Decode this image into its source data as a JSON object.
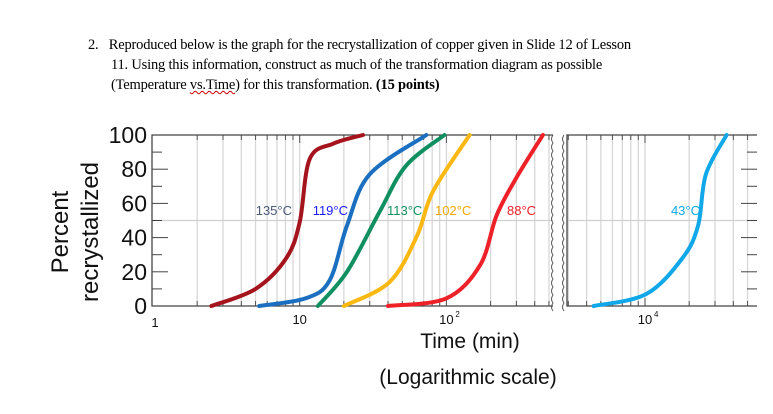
{
  "question": {
    "number": "2.",
    "line1": "Reproduced below is the graph for the recrystallization of copper given in Slide 12 of Lesson",
    "line2": "11. Using this information, construct as much of the transformation diagram as possible",
    "line3_pre": "(Temperature ",
    "line3_vs": "vs.Time",
    "line3_post": ") for this transformation. ",
    "points": "(15 points)"
  },
  "chart_data": {
    "type": "line",
    "title": "",
    "ylabel_line1": "Percent",
    "ylabel_line2": "recrystallized",
    "xlabel": "Time (min)",
    "xlabel_note": "(Logarithmic scale)",
    "x_scale": "log",
    "x_broken_axis": true,
    "xlim_left_panel": [
      1,
      590
    ],
    "xlim_right_panel": [
      2950,
      57000
    ],
    "ylim": [
      0,
      100
    ],
    "yticks": [
      "0",
      "20",
      "40",
      "60",
      "80",
      "100"
    ],
    "xtick_labels": [
      {
        "value": 1,
        "label": "1",
        "panel": "left"
      },
      {
        "value": 10,
        "label": "10",
        "panel": "left"
      },
      {
        "value": 100,
        "label": "10",
        "sup": "2",
        "panel": "left"
      },
      {
        "value": 10000,
        "label": "10",
        "sup": "4",
        "panel": "right"
      }
    ],
    "grid": true,
    "reference_line_percent": 50,
    "series": [
      {
        "name": "135°C",
        "color": "#a5141c",
        "label_color": "#4a5a78",
        "panel": "left",
        "points": [
          [
            2.5,
            0
          ],
          [
            5,
            10
          ],
          [
            8.1,
            28
          ],
          [
            10,
            49
          ],
          [
            11.7,
            86
          ],
          [
            17,
            95
          ],
          [
            27,
            100
          ]
        ]
      },
      {
        "name": "119°C",
        "color": "#1a6fc0",
        "label_color": "#1a1aff",
        "panel": "left",
        "points": [
          [
            5.3,
            0
          ],
          [
            11,
            4.5
          ],
          [
            16,
            15
          ],
          [
            21,
            47
          ],
          [
            30,
            77
          ],
          [
            73,
            100
          ]
        ]
      },
      {
        "name": "113°C",
        "color": "#109060",
        "label_color": "#109060",
        "panel": "left",
        "points": [
          [
            13.3,
            0
          ],
          [
            21,
            20
          ],
          [
            35,
            55
          ],
          [
            53,
            82
          ],
          [
            97,
            100
          ]
        ]
      },
      {
        "name": "102°C",
        "color": "#fbb812",
        "label_color": "#f0a800",
        "panel": "left",
        "points": [
          [
            20,
            0
          ],
          [
            41,
            14
          ],
          [
            63,
            41
          ],
          [
            81,
            67
          ],
          [
            144,
            100
          ]
        ]
      },
      {
        "name": "88°C",
        "color": "#ee2028",
        "label_color": "#ee2028",
        "panel": "left",
        "points": [
          [
            40,
            0
          ],
          [
            100,
            4.5
          ],
          [
            170,
            24
          ],
          [
            220,
            53
          ],
          [
            300,
            75
          ],
          [
            455,
            100
          ]
        ]
      },
      {
        "name": "43°C",
        "color": "#10a8e8",
        "label_color": "#10a8e8",
        "panel": "right",
        "points": [
          [
            4470,
            0
          ],
          [
            10200,
            7
          ],
          [
            18000,
            28
          ],
          [
            23000,
            47
          ],
          [
            26000,
            77
          ],
          [
            36000,
            100
          ]
        ]
      }
    ]
  }
}
